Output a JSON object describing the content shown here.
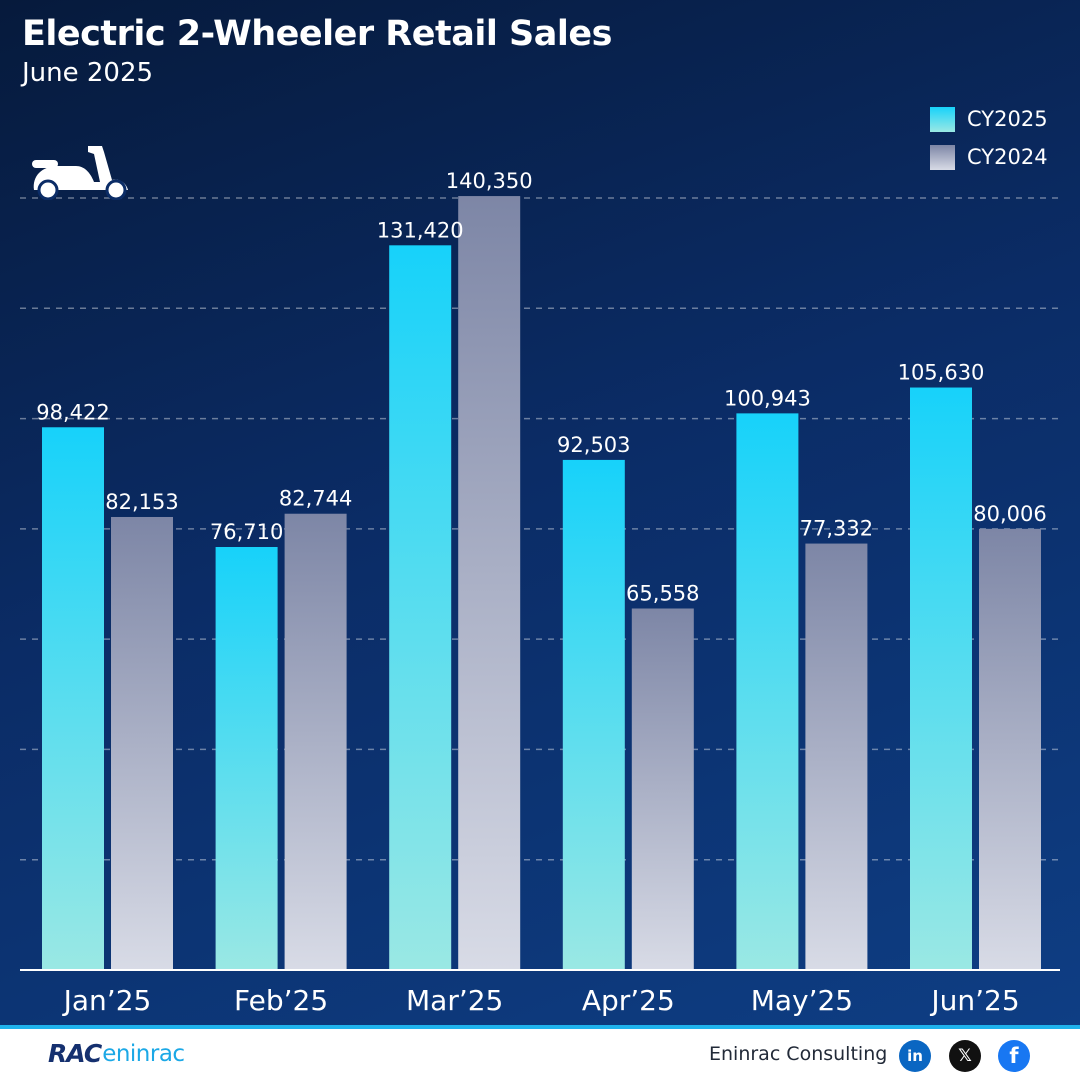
{
  "header": {
    "title": "Electric 2-Wheeler Retail Sales",
    "subtitle": "June 2025"
  },
  "legend": {
    "items": [
      {
        "label": "CY2025",
        "color": "#17d2fa"
      },
      {
        "label": "CY2024",
        "color": "#a3a9c0"
      }
    ]
  },
  "icons": {
    "scooter": "scooter-icon"
  },
  "chart_data": {
    "type": "bar",
    "categories": [
      "Jan’25",
      "Feb’25",
      "Mar’25",
      "Apr’25",
      "May’25",
      "Jun’25"
    ],
    "series": [
      {
        "name": "CY2025",
        "values": [
          98422,
          76710,
          131420,
          92503,
          100943,
          105630
        ],
        "labels": [
          "98,422",
          "76,710",
          "131,420",
          "92,503",
          "100,943",
          "105,630"
        ],
        "color_top": "#17d2fa",
        "color_bottom": "#9ae8e4"
      },
      {
        "name": "CY2024",
        "values": [
          82153,
          82744,
          140350,
          65558,
          77332,
          80006
        ],
        "labels": [
          "82,153",
          "82,744",
          "140,350",
          "65,558",
          "77,332",
          "80,006"
        ],
        "color_top": "#7d86a6",
        "color_bottom": "#d8dbe6"
      }
    ],
    "ylim": [
      0,
      140000
    ],
    "grid": true,
    "legend_position": "top-right"
  },
  "footer": {
    "logo_mark": "RAC",
    "logo_name": "eninrac",
    "company": "Eninrac Consulting",
    "social": {
      "linkedin": "in",
      "x": "𝕏",
      "facebook": "f"
    }
  }
}
